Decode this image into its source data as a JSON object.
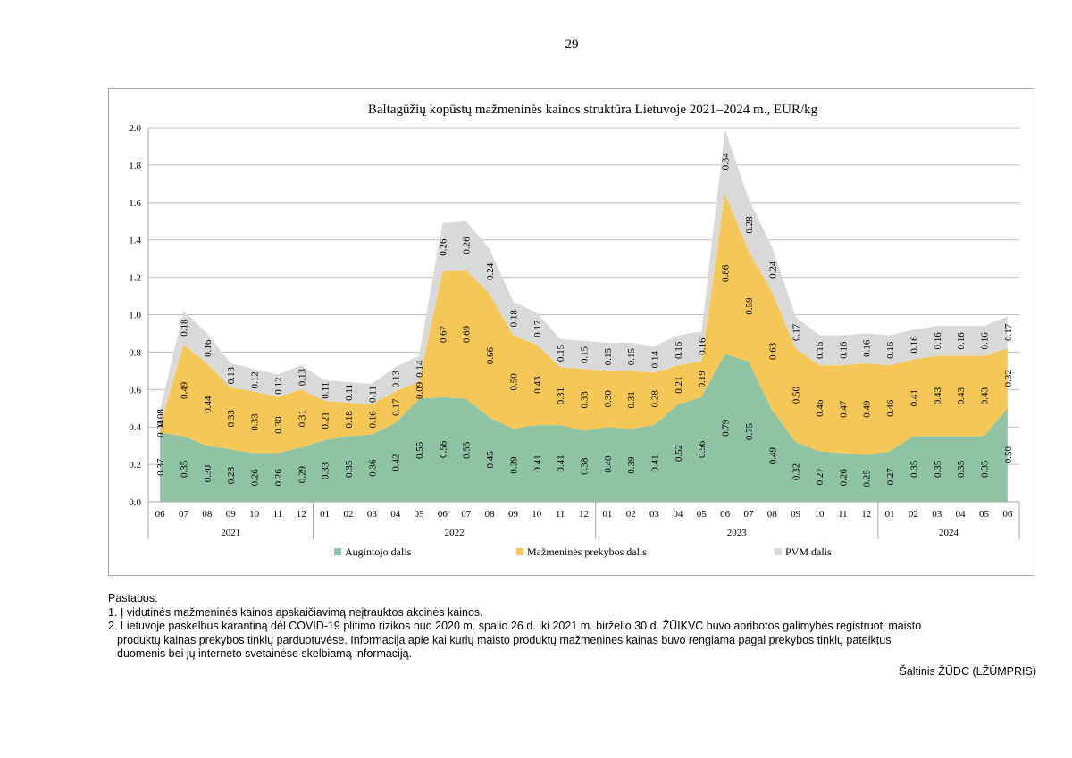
{
  "page_number": "29",
  "colors": {
    "grower": "#8ec3a3",
    "retail": "#f4c757",
    "vat": "#d9d9d9",
    "grid": "#bfbfbf"
  },
  "chart_data": {
    "type": "area",
    "stacked": true,
    "title": "Baltagūžių kopūstų mažmeninės kainos struktūra Lietuvoje 2021–2024 m., EUR/kg",
    "ylim": [
      0,
      2.0
    ],
    "yticks": [
      "0.0",
      "0.2",
      "0.4",
      "0.6",
      "0.8",
      "1.0",
      "1.2",
      "1.4",
      "1.6",
      "1.8",
      "2.0"
    ],
    "months": [
      "06",
      "07",
      "08",
      "09",
      "10",
      "11",
      "12",
      "01",
      "02",
      "03",
      "04",
      "05",
      "06",
      "07",
      "08",
      "09",
      "10",
      "11",
      "12",
      "01",
      "02",
      "03",
      "04",
      "05",
      "06",
      "07",
      "08",
      "09",
      "10",
      "11",
      "12",
      "01",
      "02",
      "03",
      "04",
      "05",
      "06"
    ],
    "year_groups": [
      {
        "label": "2021",
        "count": 7
      },
      {
        "label": "2022",
        "count": 12
      },
      {
        "label": "2023",
        "count": 12
      },
      {
        "label": "2024",
        "count": 6
      }
    ],
    "series": [
      {
        "name": "Augintojo dalis",
        "color": "#8ec3a3",
        "values": [
          0.37,
          0.35,
          0.3,
          0.28,
          0.26,
          0.26,
          0.29,
          0.33,
          0.35,
          0.36,
          0.42,
          0.55,
          0.56,
          0.55,
          0.45,
          0.39,
          0.41,
          0.41,
          0.38,
          0.4,
          0.39,
          0.41,
          0.52,
          0.56,
          0.79,
          0.75,
          0.49,
          0.32,
          0.27,
          0.26,
          0.25,
          0.27,
          0.35,
          0.35,
          0.35,
          0.35,
          0.5
        ],
        "labels": [
          "0.37",
          "0.35",
          "0.30",
          "0.28",
          "0.26",
          "0.26",
          "0.29",
          "0.33",
          "0.35",
          "0.36",
          "0.42",
          "0.55",
          "0.56",
          "0.55",
          "0.45",
          "0.39",
          "0.41",
          "0.41",
          "0.38",
          "0.40",
          "0.39",
          "0.41",
          "0.52",
          "0.56",
          "0.79",
          "0.75",
          "0.49",
          "0.32",
          "0.27",
          "0.26",
          "0.25",
          "0.27",
          "0.35",
          "0.35",
          "0.35",
          "0.35",
          "0.50"
        ]
      },
      {
        "name": "Mažmeninės prekybos dalis",
        "color": "#f4c757",
        "values": [
          0.04,
          0.49,
          0.44,
          0.33,
          0.33,
          0.3,
          0.31,
          0.21,
          0.18,
          0.16,
          0.17,
          0.09,
          0.67,
          0.69,
          0.66,
          0.5,
          0.43,
          0.31,
          0.33,
          0.3,
          0.31,
          0.28,
          0.21,
          0.19,
          0.86,
          0.59,
          0.63,
          0.5,
          0.46,
          0.47,
          0.49,
          0.46,
          0.41,
          0.43,
          0.43,
          0.43,
          0.32
        ],
        "labels": [
          "0.04",
          "0.49",
          "0.44",
          "0.33",
          "0.33",
          "0.30",
          "0.31",
          "0.21",
          "0.18",
          "0.16",
          "0.17",
          "0.09",
          "0.67",
          "0.69",
          "0.66",
          "0.50",
          "0.43",
          "0.31",
          "0.33",
          "0.30",
          "0.31",
          "0.28",
          "0.21",
          "0.19",
          "0.86",
          "0.59",
          "0.63",
          "0.50",
          "0.46",
          "0.47",
          "0.49",
          "0.46",
          "0.41",
          "0.43",
          "0.43",
          "0.43",
          "0.32"
        ]
      },
      {
        "name": "PVM dalis",
        "color": "#d9d9d9",
        "values": [
          0.08,
          0.18,
          0.16,
          0.13,
          0.12,
          0.12,
          0.13,
          0.11,
          0.11,
          0.11,
          0.13,
          0.14,
          0.26,
          0.26,
          0.24,
          0.18,
          0.17,
          0.15,
          0.15,
          0.15,
          0.15,
          0.14,
          0.16,
          0.16,
          0.34,
          0.28,
          0.24,
          0.17,
          0.16,
          0.16,
          0.16,
          0.16,
          0.16,
          0.16,
          0.16,
          0.16,
          0.17
        ],
        "labels": [
          "0.08",
          "0.18",
          "0.16",
          "0.13",
          "0.12",
          "0.12",
          "0.13",
          "0.11",
          "0.11",
          "0.11",
          "0.13",
          "0.14",
          "0.26",
          "0.26",
          "0.24",
          "0.18",
          "0.17",
          "0.15",
          "0.15",
          "0.15",
          "0.15",
          "0.14",
          "0.16",
          "0.16",
          "0.34",
          "0.28",
          "0.24",
          "0.17",
          "0.16",
          "0.16",
          "0.16",
          "0.16",
          "0.16",
          "0.16",
          "0.16",
          "0.16",
          "0.17"
        ]
      }
    ],
    "legend_position": "bottom",
    "grid": true
  },
  "notes": {
    "heading": "Pastabos:",
    "items": [
      "1. Į vidutinės mažmeninės kainos apskaičiavimą neįtrauktos akcinės kainos.",
      "2. Lietuvoje paskelbus karantiną dėl COVID-19 plitimo rizikos nuo 2020 m. spalio 26 d. iki 2021 m. birželio 30 d. ŽŪIKVC buvo apribotos galimybės registruoti maisto",
      "produktų kainas prekybos tinklų parduotuvėse. Informacija apie kai kurių maisto produktų mažmenines kainas buvo rengiama pagal prekybos tinklų pateiktus",
      "duomenis bei jų interneto svetainėse skelbiamą informaciją."
    ]
  },
  "source": "Šaltinis ŽŪDC (LŽŪMPRIS)"
}
